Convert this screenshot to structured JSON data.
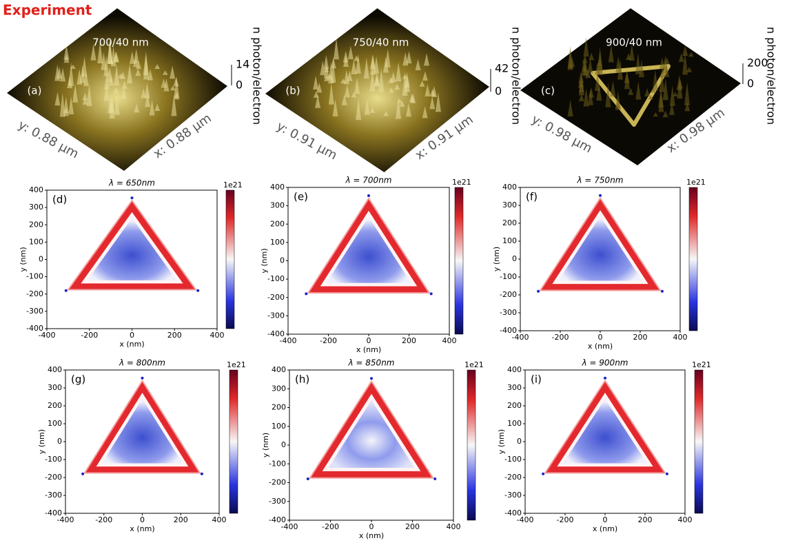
{
  "header": {
    "title": "Experiment"
  },
  "experiment_panels": [
    {
      "label": "(a)",
      "title": "700/40 nm",
      "x_label": "x: 0.88 µm",
      "y_label": "y: 0.88 µm",
      "z_label": "n photon/electron",
      "z_ticks": [
        "14",
        "0"
      ]
    },
    {
      "label": "(b)",
      "title": "750/40 nm",
      "x_label": "x: 0.91 µm",
      "y_label": "y: 0.91 µm",
      "z_label": "n photon/electron",
      "z_ticks": [
        "42",
        "0"
      ]
    },
    {
      "label": "(c)",
      "title": "900/40 nm",
      "x_label": "x: 0.98 µm",
      "y_label": "y: 0.98 µm",
      "z_label": "n photon/electron",
      "z_ticks": [
        "200",
        "0"
      ]
    }
  ],
  "simulation_panels": [
    {
      "label": "(d)",
      "title": "λ = 650nm",
      "colorbar_label": "1e21",
      "x_label": "x (nm)",
      "y_label": "y (nm)",
      "xticks": [
        -400,
        -200,
        0,
        200,
        400
      ],
      "yticks": [
        -400,
        -300,
        -200,
        -100,
        0,
        100,
        200,
        300,
        400
      ]
    },
    {
      "label": "(e)",
      "title": "λ = 700nm",
      "colorbar_label": "1e21",
      "x_label": "x (nm)",
      "y_label": "y (nm)",
      "xticks": [
        -400,
        -200,
        0,
        200,
        400
      ],
      "yticks": [
        -400,
        -300,
        -200,
        -100,
        0,
        100,
        200,
        300,
        400
      ]
    },
    {
      "label": "(f)",
      "title": "λ = 750nm",
      "colorbar_label": "1e21",
      "x_label": "x (nm)",
      "y_label": "y (nm)",
      "xticks": [
        -400,
        -200,
        0,
        200,
        400
      ],
      "yticks": [
        -400,
        -300,
        -200,
        -100,
        0,
        100,
        200,
        300,
        400
      ]
    },
    {
      "label": "(g)",
      "title": "λ = 800nm",
      "colorbar_label": "1e21",
      "x_label": "x (nm)",
      "y_label": "y (nm)",
      "xticks": [
        -400,
        -200,
        0,
        200,
        400
      ],
      "yticks": [
        -400,
        -300,
        -200,
        -100,
        0,
        100,
        200,
        300,
        400
      ]
    },
    {
      "label": "(h)",
      "title": "λ = 850nm",
      "colorbar_label": "1e21",
      "x_label": "x (nm)",
      "y_label": "y (nm)",
      "xticks": [
        -400,
        -200,
        0,
        200,
        400
      ],
      "yticks": [
        -400,
        -300,
        -200,
        -100,
        0,
        100,
        200,
        300,
        400
      ]
    },
    {
      "label": "(i)",
      "title": "λ = 900nm",
      "colorbar_label": "1e21",
      "x_label": "x (nm)",
      "y_label": "y (nm)",
      "xticks": [
        -400,
        -200,
        0,
        200,
        400
      ],
      "yticks": [
        -400,
        -300,
        -200,
        -100,
        0,
        100,
        200,
        300,
        400
      ]
    }
  ]
}
